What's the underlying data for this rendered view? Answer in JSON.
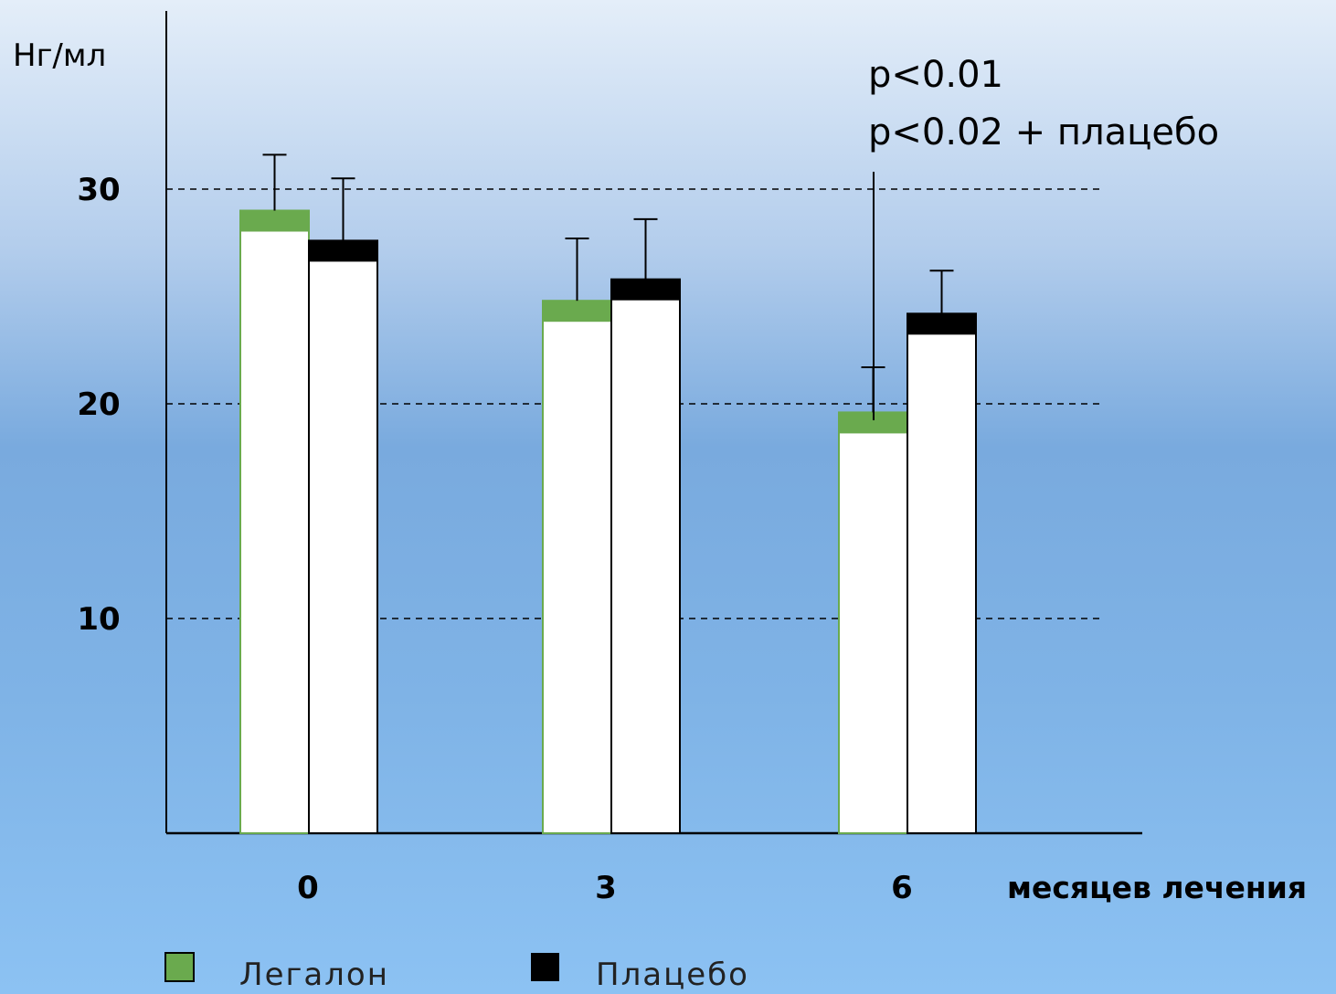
{
  "chart_data": {
    "type": "bar",
    "ylabel": "Нг/мл",
    "xlabel": "месяцев лечения",
    "categories": [
      "0",
      "3",
      "6"
    ],
    "yticks": [
      "10",
      "20",
      "30"
    ],
    "ylim": [
      0,
      40
    ],
    "grid": "dashed horizontal at 10, 20, 30",
    "series": [
      {
        "name": "Легалон",
        "color": "#6aaa4e",
        "values": [
          29.0,
          24.8,
          19.6
        ],
        "errors": [
          2.6,
          2.9,
          2.1
        ]
      },
      {
        "name": "Плацебо",
        "color": "#000000",
        "values": [
          27.6,
          25.8,
          24.2
        ],
        "errors": [
          2.9,
          2.8,
          2.0
        ]
      }
    ],
    "annotations": [
      "p<0.01",
      "p<0.02 + плацебо"
    ],
    "legend_position": "bottom-left"
  }
}
